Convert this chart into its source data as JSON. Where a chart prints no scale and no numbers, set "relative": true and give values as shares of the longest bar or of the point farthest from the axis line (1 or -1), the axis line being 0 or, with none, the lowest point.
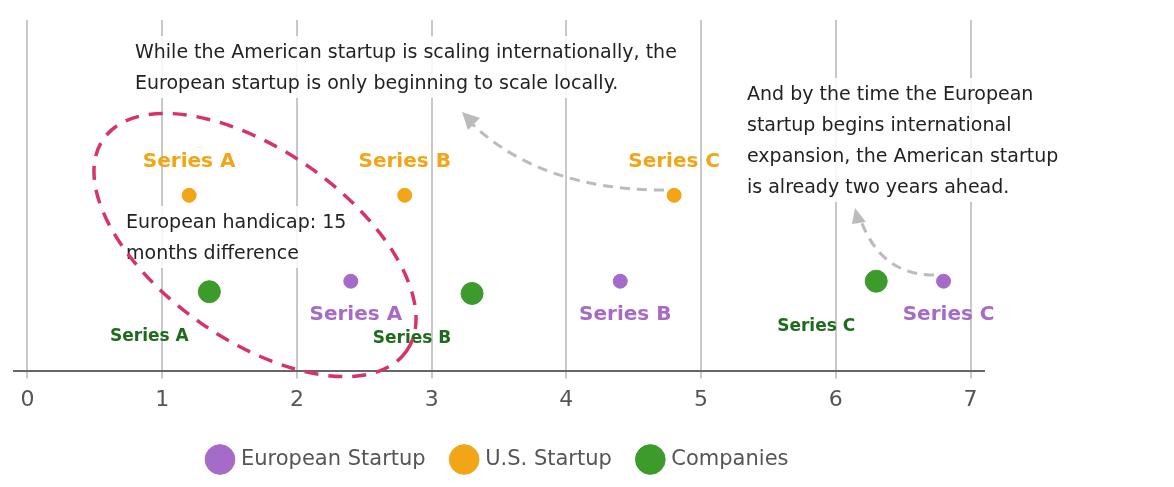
{
  "chart_data": {
    "type": "scatter",
    "relative": true,
    "xlim": [
      -0.1,
      7.1
    ],
    "xticks": [
      0,
      1,
      2,
      3,
      4,
      5,
      6,
      7
    ],
    "grid": "x",
    "legend": "bottom",
    "marker": "circle",
    "series": [
      {
        "name": "European Startup",
        "color": "#a66bc8",
        "x": [
          2.4,
          4.4,
          6.8
        ],
        "values": [
          0.51,
          0.51,
          0.51
        ]
      },
      {
        "name": "U.S. Startup",
        "color": "#f2a516",
        "x": [
          1.2,
          2.8,
          4.8
        ],
        "values": [
          1,
          1,
          1
        ]
      },
      {
        "name": "Companies",
        "color": "#3c9b2a",
        "x": [
          1.35,
          3.3,
          6.3
        ],
        "values": [
          0.45,
          0.44,
          0.51
        ]
      }
    ],
    "annotations": [
      "While the American startup is scaling internationally, the European startup is only beginning to scale locally.",
      "And by the time the European startup begins international expansion, the American startup is already two years ahead.",
      "European handicap: 15 months difference",
      {
        "text": "Series A",
        "x": 2.4,
        "y": 0.51
      },
      {
        "text": "Series B",
        "x": 4.4,
        "y": 0.51
      },
      {
        "text": "Series C",
        "x": 6.8,
        "y": 0.51
      },
      {
        "text": "Series A",
        "x": 1.2,
        "y": 1
      },
      {
        "text": "Series B",
        "x": 2.8,
        "y": 1
      },
      {
        "text": "Series C",
        "x": 4.8,
        "y": 1
      },
      {
        "text": "Series A",
        "x": 1.35,
        "y": 0.45
      },
      {
        "text": "Series B",
        "x": 3.3,
        "y": 0.44
      },
      {
        "text": "Series C",
        "x": 6.3,
        "y": 0.51
      }
    ]
  }
}
